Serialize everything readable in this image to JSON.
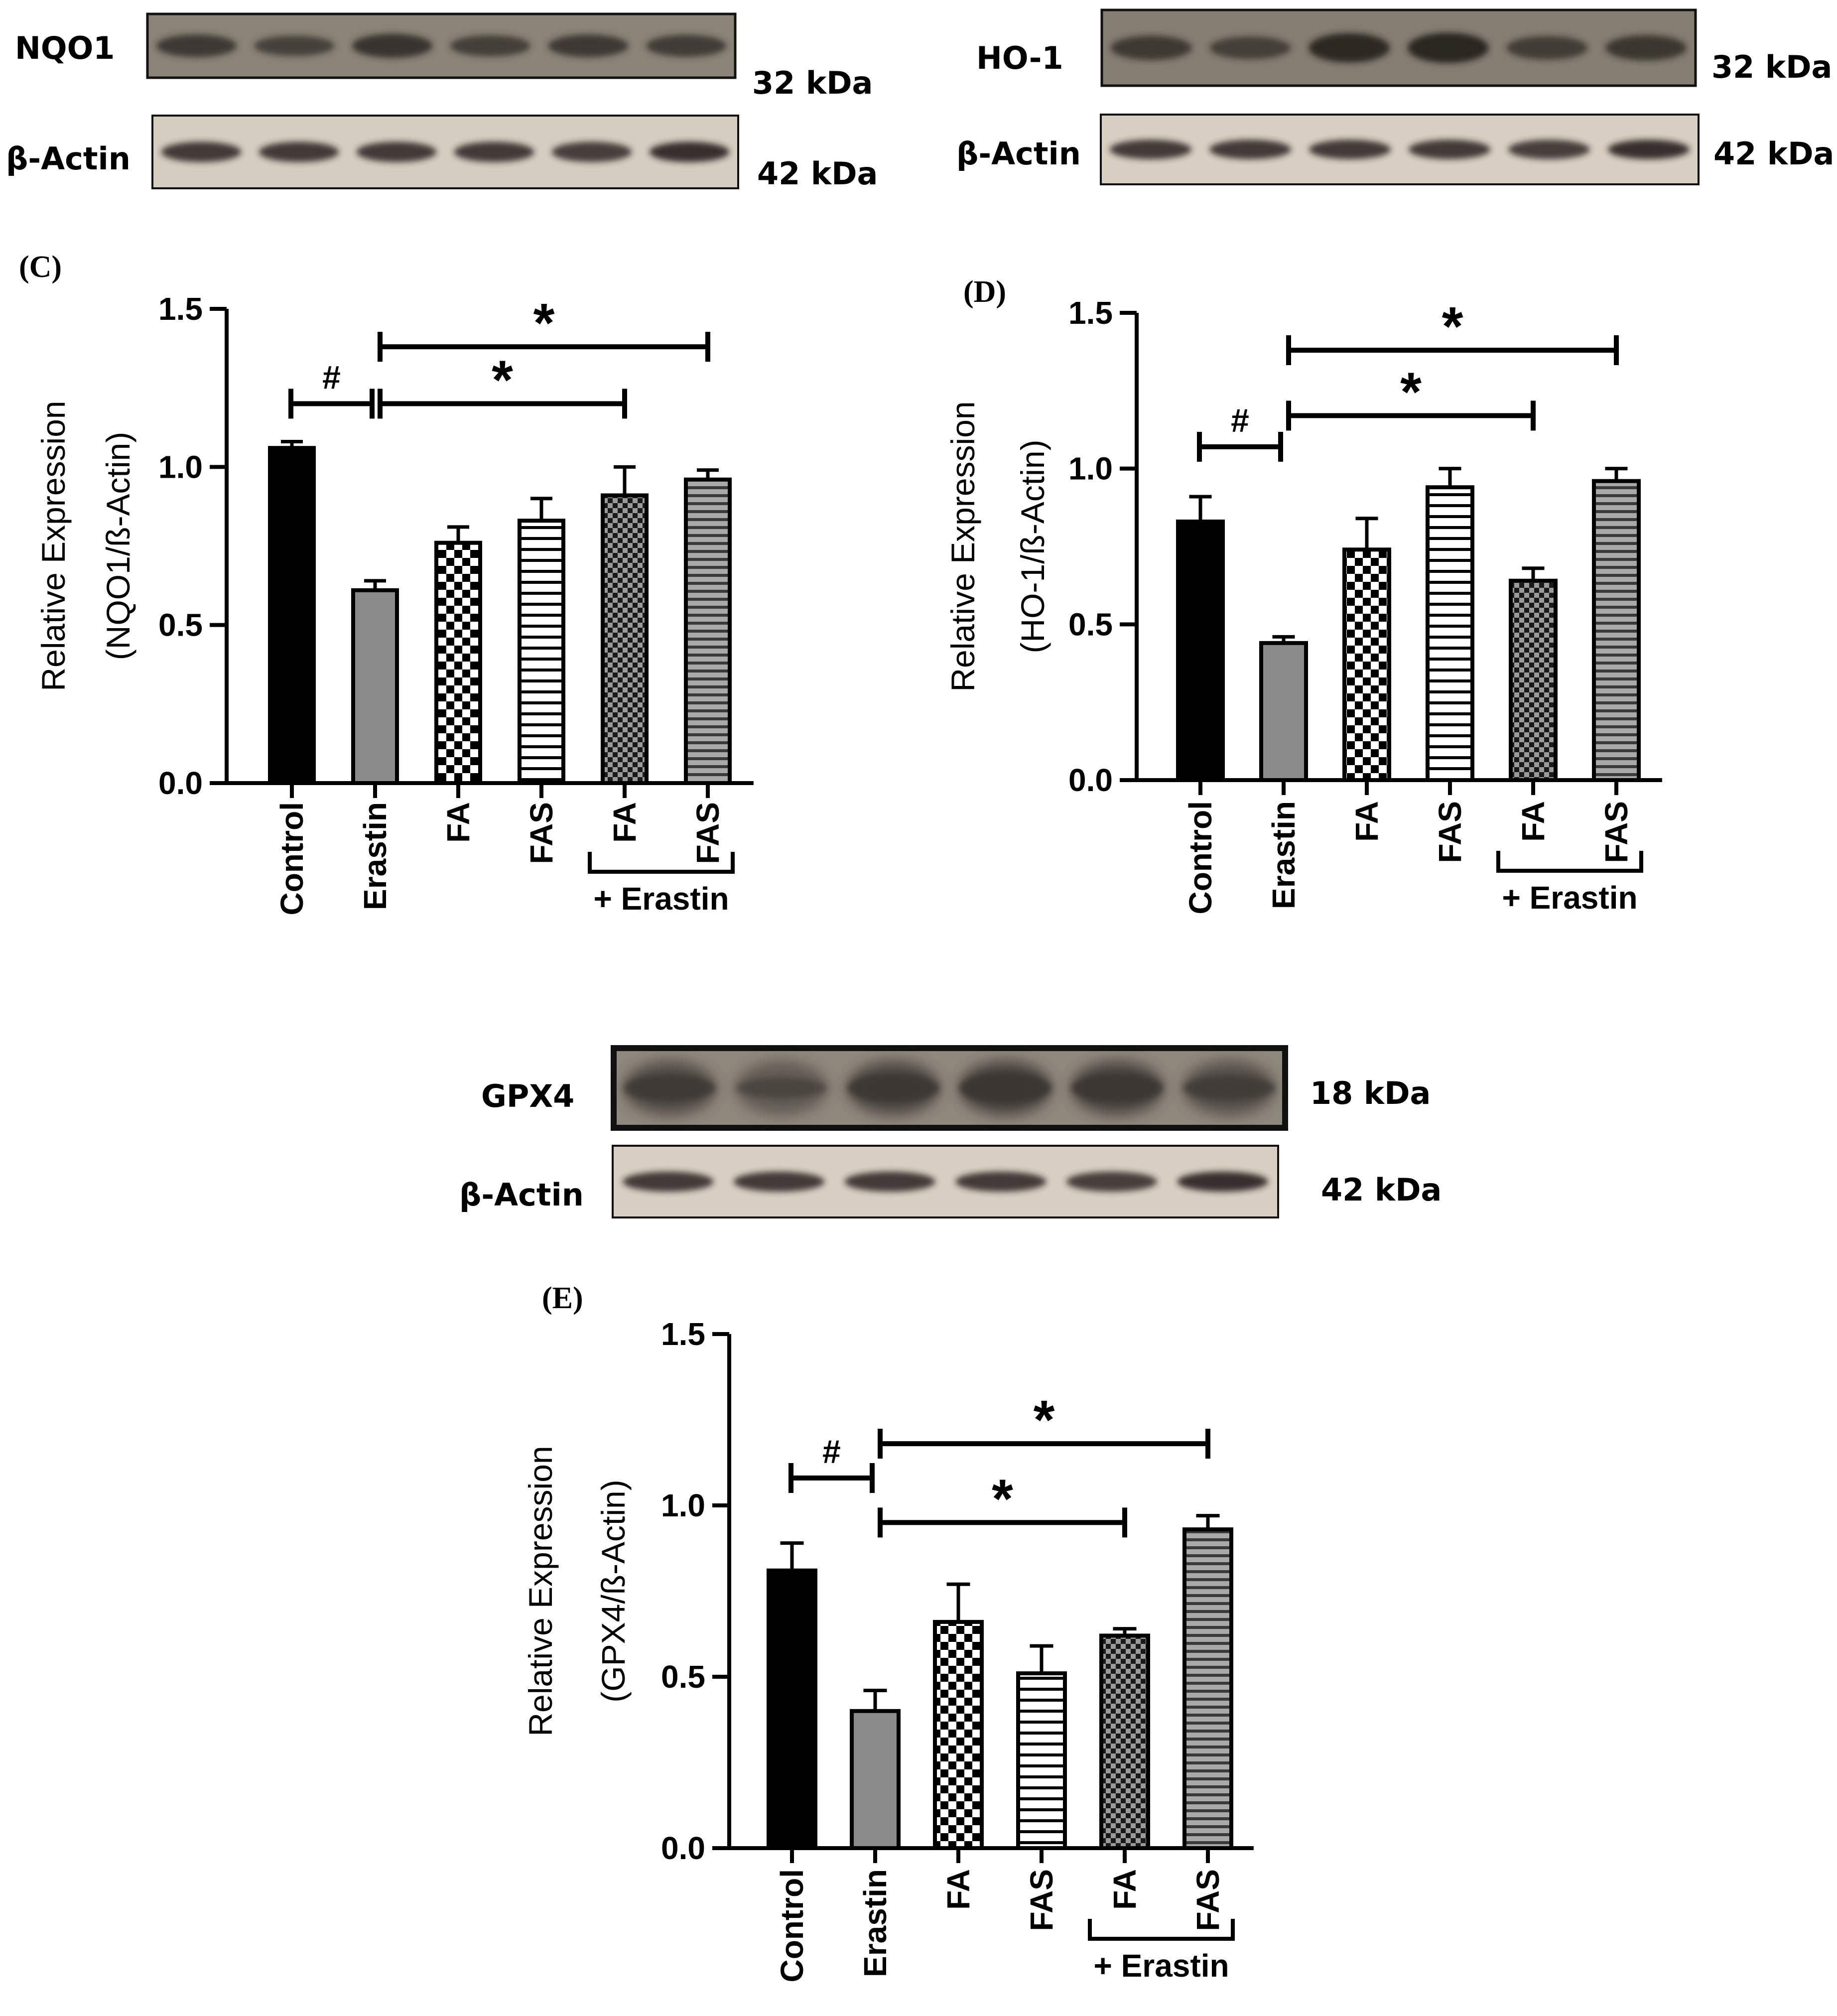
{
  "blots": [
    {
      "id": "nqo1",
      "target": {
        "label": "NQO1",
        "kda": "32 kDa",
        "background": "#8a8377",
        "band": "#2e2a26"
      },
      "control": {
        "label": "β-Actin",
        "kda": "42 kDa",
        "background": "#d5cdc0",
        "band": "#2a2420"
      },
      "target_band_intensity": [
        0.8,
        0.65,
        0.9,
        0.7,
        0.8,
        0.75
      ],
      "control_band_intensity": [
        0.85,
        0.85,
        0.85,
        0.85,
        0.8,
        0.95
      ]
    },
    {
      "id": "ho1",
      "target": {
        "label": "HO-1",
        "kda": "32 kDa",
        "background": "#847d72",
        "band": "#28231f"
      },
      "control": {
        "label": "β-Actin",
        "kda": "42 kDa",
        "background": "#d8cfc2",
        "band": "#2a2420"
      },
      "target_band_intensity": [
        0.65,
        0.55,
        0.95,
        1.0,
        0.6,
        0.7
      ],
      "control_band_intensity": [
        0.85,
        0.85,
        0.85,
        0.85,
        0.8,
        0.95
      ]
    },
    {
      "id": "gpx4",
      "target": {
        "label": "GPX4",
        "kda": "18 kDa",
        "background": "#8f887d",
        "band": "#3a3530"
      },
      "control": {
        "label": "β-Actin",
        "kda": "42 kDa",
        "background": "#d8cfc2",
        "band": "#2a2420"
      },
      "target_band_intensity": [
        0.7,
        0.35,
        0.8,
        0.9,
        0.85,
        0.6
      ],
      "control_band_intensity": [
        0.85,
        0.85,
        0.85,
        0.85,
        0.8,
        0.95
      ]
    }
  ],
  "chart_data": [
    {
      "panel": "(C)",
      "type": "bar",
      "ylabel_line1": "Relative Expression",
      "ylabel_line2": "(NQO1/ß-Actin)",
      "ylim": [
        0,
        1.5
      ],
      "yticks": [
        "0.0",
        "0.5",
        "1.0",
        "1.5"
      ],
      "categories": [
        "Control",
        "Erastin",
        "FA",
        "FAS",
        "FA",
        "FAS"
      ],
      "group_label": "+ Erastin",
      "values": [
        1.06,
        0.61,
        0.76,
        0.83,
        0.91,
        0.96
      ],
      "errors": [
        0.02,
        0.03,
        0.05,
        0.07,
        0.09,
        0.03
      ],
      "patterns": [
        "solid-black",
        "solid-gray",
        "checker",
        "hstripe",
        "checker-small",
        "hstripe-gray"
      ],
      "significance": [
        {
          "symbol": "#",
          "from": 0,
          "to": 1,
          "y": 1.2
        },
        {
          "symbol": "*",
          "from": 1,
          "to": 4,
          "y": 1.2
        },
        {
          "symbol": "*",
          "from": 1,
          "to": 5,
          "y": 1.38
        }
      ]
    },
    {
      "panel": "(D)",
      "type": "bar",
      "ylabel_line1": "Relative Expression",
      "ylabel_line2": "(HO-1/ß-Actin)",
      "ylim": [
        0,
        1.5
      ],
      "yticks": [
        "0.0",
        "0.5",
        "1.0",
        "1.5"
      ],
      "categories": [
        "Control",
        "Erastin",
        "FA",
        "FAS",
        "FA",
        "FAS"
      ],
      "group_label": "+ Erastin",
      "values": [
        0.83,
        0.44,
        0.74,
        0.94,
        0.64,
        0.96
      ],
      "errors": [
        0.08,
        0.02,
        0.1,
        0.06,
        0.04,
        0.04
      ],
      "patterns": [
        "solid-black",
        "solid-gray",
        "checker",
        "hstripe",
        "checker-small",
        "hstripe-gray"
      ],
      "significance": [
        {
          "symbol": "#",
          "from": 0,
          "to": 1,
          "y": 1.07
        },
        {
          "symbol": "*",
          "from": 1,
          "to": 4,
          "y": 1.17
        },
        {
          "symbol": "*",
          "from": 1,
          "to": 5,
          "y": 1.38
        }
      ]
    },
    {
      "panel": "(E)",
      "type": "bar",
      "ylabel_line1": "Relative Expression",
      "ylabel_line2": "(GPX4/ß-Actin)",
      "ylim": [
        0,
        1.5
      ],
      "yticks": [
        "0.0",
        "0.5",
        "1.0",
        "1.5"
      ],
      "categories": [
        "Control",
        "Erastin",
        "FA",
        "FAS",
        "FA",
        "FAS"
      ],
      "group_label": "+ Erastin",
      "values": [
        0.81,
        0.4,
        0.66,
        0.51,
        0.62,
        0.93
      ],
      "errors": [
        0.08,
        0.06,
        0.11,
        0.08,
        0.02,
        0.04
      ],
      "patterns": [
        "solid-black",
        "solid-gray",
        "checker",
        "hstripe",
        "checker-small",
        "hstripe-gray"
      ],
      "significance": [
        {
          "symbol": "#",
          "from": 0,
          "to": 1,
          "y": 1.08
        },
        {
          "symbol": "*",
          "from": 1,
          "to": 4,
          "y": 0.95
        },
        {
          "symbol": "*",
          "from": 1,
          "to": 5,
          "y": 1.18
        }
      ]
    }
  ]
}
